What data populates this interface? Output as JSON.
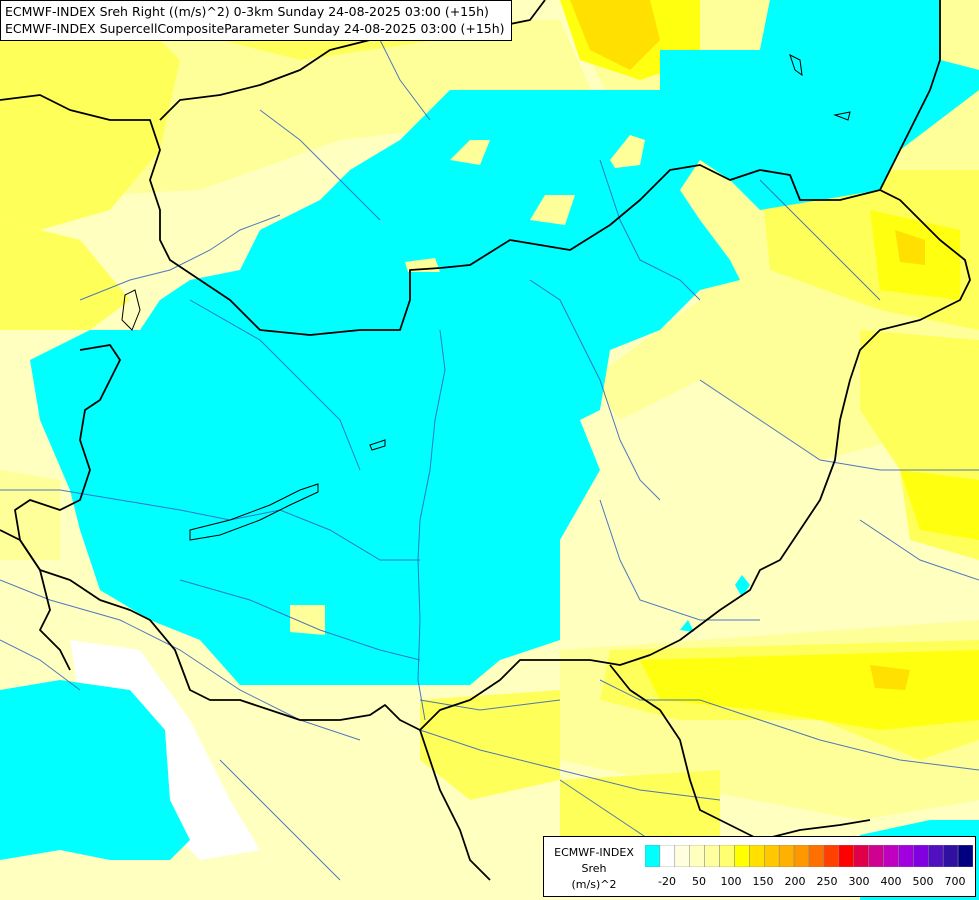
{
  "header": {
    "line1": "ECMWF-INDEX Sreh Right ((m/s)^2) 0-3km Sunday 24-08-2025 03:00 (+15h)",
    "line2": "ECMWF-INDEX SupercellCompositeParameter Sunday 24-08-2025 03:00 (+15h)"
  },
  "legend": {
    "model": "ECMWF-INDEX",
    "variable": "Sreh",
    "unit": "(m/s)^2",
    "colors": [
      "#00ffff",
      "#ffffff",
      "#ffffe0",
      "#ffffc0",
      "#ffffa0",
      "#ffff70",
      "#ffff00",
      "#ffe000",
      "#ffc800",
      "#ffb000",
      "#ff9800",
      "#ff7000",
      "#ff4000",
      "#ff0000",
      "#e0004a",
      "#d00090",
      "#c000c0",
      "#a000e0",
      "#8000e0",
      "#5010c0",
      "#3010a0",
      "#000080"
    ],
    "ticks": [
      "-20",
      "50",
      "100",
      "150",
      "200",
      "250",
      "300",
      "400",
      "500",
      "700"
    ]
  },
  "colors": {
    "cyan": "#00ffff",
    "pale": "#ffffc0",
    "light_yellow": "#ffff9a",
    "yellow": "#ffff50",
    "strong_yellow": "#ffff00",
    "orange_yellow": "#ffe000",
    "border": "#000000",
    "river": "#3060c0"
  }
}
